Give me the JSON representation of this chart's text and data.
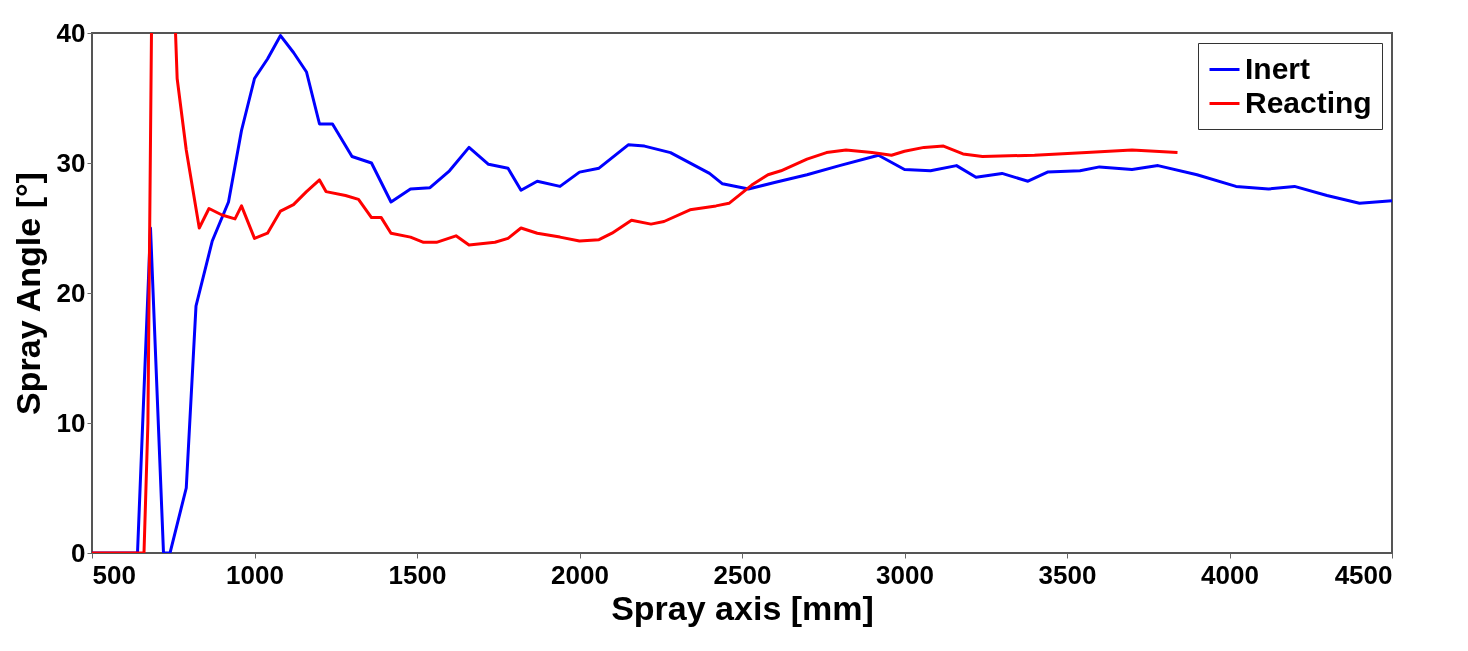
{
  "chart_data": {
    "type": "line",
    "xlabel": "Spray axis [mm]",
    "ylabel": "Spray Angle [°]",
    "xlim": [
      500,
      4500
    ],
    "xticks": [
      500,
      1000,
      1500,
      2000,
      2500,
      3000,
      3500,
      4000,
      4500
    ],
    "ylim": [
      0,
      40
    ],
    "yticks": [
      0,
      10,
      20,
      30,
      40
    ],
    "grid": false,
    "legend": "top right",
    "line_style": "solid",
    "marker": "none",
    "series": [
      {
        "name": "Inert",
        "color": "#0000ff",
        "x": [
          500,
          640,
          680,
          720,
          740,
          790,
          820,
          870,
          920,
          960,
          1000,
          1040,
          1080,
          1120,
          1160,
          1200,
          1240,
          1300,
          1360,
          1420,
          1480,
          1540,
          1600,
          1660,
          1720,
          1780,
          1820,
          1870,
          1940,
          2000,
          2060,
          2150,
          2200,
          2280,
          2400,
          2440,
          2520,
          2600,
          2700,
          2800,
          2920,
          3000,
          3080,
          3160,
          3220,
          3300,
          3380,
          3440,
          3540,
          3600,
          3700,
          3780,
          3900,
          4020,
          4120,
          4200,
          4300,
          4400,
          4500
        ],
        "values": [
          0,
          0,
          25,
          0,
          0,
          5,
          19,
          24,
          27,
          32.5,
          36.5,
          38,
          39.8,
          38.5,
          37,
          33,
          33,
          30.5,
          30,
          27,
          28,
          28.1,
          29.4,
          31.2,
          29.9,
          29.6,
          27.9,
          28.6,
          28.2,
          29.3,
          29.6,
          31.4,
          31.3,
          30.8,
          29.2,
          28.4,
          28,
          28.5,
          29.1,
          29.8,
          30.6,
          29.5,
          29.4,
          29.8,
          28.9,
          29.2,
          28.6,
          29.3,
          29.4,
          29.7,
          29.5,
          29.8,
          29.1,
          28.2,
          28,
          28.2,
          27.5,
          26.9,
          27.1
        ]
      },
      {
        "name": "Reacting",
        "color": "#ff0000",
        "x": [
          500,
          660,
          672,
          683,
          720,
          757,
          762,
          790,
          830,
          860,
          900,
          940,
          960,
          1000,
          1040,
          1080,
          1120,
          1160,
          1200,
          1220,
          1280,
          1320,
          1360,
          1390,
          1420,
          1480,
          1520,
          1560,
          1620,
          1660,
          1740,
          1780,
          1820,
          1870,
          1940,
          2000,
          2060,
          2100,
          2160,
          2220,
          2260,
          2340,
          2420,
          2460,
          2530,
          2580,
          2620,
          2700,
          2760,
          2820,
          2900,
          2960,
          3000,
          3060,
          3120,
          3180,
          3240,
          3400,
          3560,
          3700,
          3840
        ],
        "values": [
          0,
          0,
          10,
          40,
          null,
          40,
          36.5,
          31,
          25,
          26.5,
          26,
          25.7,
          26.7,
          24.2,
          24.6,
          26.3,
          26.8,
          27.8,
          28.7,
          27.8,
          27.5,
          27.2,
          25.8,
          25.8,
          24.6,
          24.3,
          23.9,
          23.9,
          24.4,
          23.7,
          23.9,
          24.2,
          25,
          24.6,
          24.3,
          24,
          24.1,
          24.6,
          25.6,
          25.3,
          25.5,
          26.4,
          26.7,
          26.9,
          28.3,
          29.1,
          29.4,
          30.3,
          30.8,
          31,
          30.8,
          30.6,
          30.9,
          31.2,
          31.3,
          30.7,
          30.5,
          30.6,
          30.8,
          31,
          30.8
        ]
      }
    ]
  }
}
